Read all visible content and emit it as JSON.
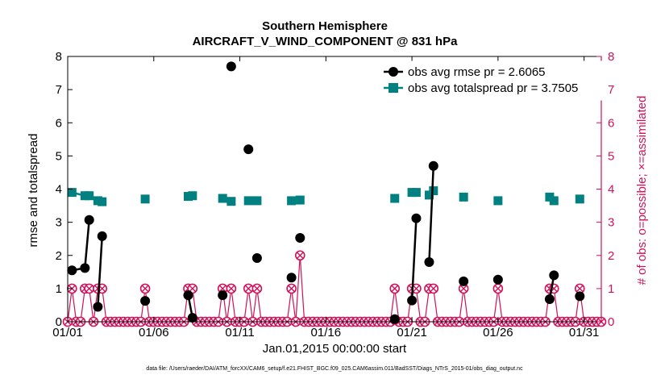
{
  "chart_data": {
    "type": "line",
    "title": "Southern Hemisphere",
    "subtitle": "AIRCRAFT_V_WIND_COMPONENT @ 831 hPa",
    "xlabel": "Jan.01,2015 00:00:00 start",
    "ylabel": "rmse and totalspread",
    "ylabel_right": "# of obs: o=possible; ×=assimilated",
    "footnote": "data file: /Users/raeder/DAI/ATM_forcXX/CAM6_setup/f.e21.FHIST_BGC.f09_025.CAM6assim.011/BadSST/Diags_NTrS_2015-01/obs_diag_output.nc",
    "xlim": [
      1,
      32
    ],
    "ylim": [
      0,
      8
    ],
    "ylim_right": [
      0,
      8
    ],
    "x_ticks": [
      1,
      6,
      11,
      16,
      21,
      26,
      31
    ],
    "x_tick_labels": [
      "01/01",
      "01/06",
      "01/11",
      "01/16",
      "01/21",
      "01/26",
      "01/31"
    ],
    "y_ticks": [
      0,
      1,
      2,
      3,
      4,
      5,
      6,
      7,
      8
    ],
    "y_tick_labels": [
      "0",
      "1",
      "2",
      "3",
      "4",
      "5",
      "6",
      "7",
      "8"
    ],
    "y_right_ticks": [
      0,
      1,
      2,
      3,
      4,
      5,
      6,
      7,
      8
    ],
    "y_right_tick_labels": [
      "0",
      "1",
      "2",
      "3",
      "4",
      "5",
      "6",
      "7",
      "8"
    ],
    "legend_position": "top-right",
    "colors": {
      "rmse": "#000000",
      "spread": "#008080",
      "obs": "#d1105a"
    },
    "series": [
      {
        "name": "obs avg rmse",
        "legend": "obs avg rmse pr = 2.6065",
        "marker": "circle",
        "x": [
          1.25,
          2.0,
          2.25,
          2.75,
          3.0,
          5.5,
          8.0,
          8.25,
          10.0,
          10.5,
          11.5,
          12.0,
          14.0,
          14.5,
          20.0,
          21.0,
          21.25,
          22.0,
          22.25,
          24.0,
          26.0,
          29.0,
          29.25,
          30.75
        ],
        "y": [
          1.55,
          1.62,
          3.07,
          0.45,
          2.58,
          0.63,
          0.8,
          0.12,
          0.8,
          7.7,
          5.2,
          1.92,
          1.33,
          2.53,
          0.08,
          0.64,
          3.12,
          1.8,
          4.7,
          1.22,
          1.27,
          0.68,
          1.4,
          0.77
        ],
        "connected_pairs": [
          [
            0,
            1
          ],
          [
            1,
            2
          ],
          [
            3,
            4
          ],
          [
            6,
            7
          ],
          [
            15,
            16
          ],
          [
            17,
            18
          ],
          [
            21,
            22
          ]
        ]
      },
      {
        "name": "obs avg totalspread",
        "legend": "obs avg totalspread pr = 3.7505",
        "marker": "square",
        "x": [
          1.25,
          2.0,
          2.25,
          2.75,
          3.0,
          5.5,
          8.0,
          8.25,
          10.0,
          10.5,
          11.5,
          12.0,
          14.0,
          14.5,
          20.0,
          21.0,
          21.25,
          22.0,
          22.25,
          24.0,
          26.0,
          29.0,
          29.25,
          30.75
        ],
        "y": [
          3.9,
          3.8,
          3.8,
          3.65,
          3.62,
          3.7,
          3.78,
          3.8,
          3.72,
          3.63,
          3.65,
          3.65,
          3.65,
          3.67,
          3.72,
          3.9,
          3.9,
          3.82,
          3.95,
          3.76,
          3.65,
          3.76,
          3.65,
          3.7
        ],
        "connected_pairs": [
          [
            0,
            1
          ],
          [
            1,
            2
          ],
          [
            3,
            4
          ],
          [
            6,
            7
          ],
          [
            15,
            16
          ],
          [
            17,
            18
          ],
          [
            21,
            22
          ]
        ]
      },
      {
        "name": "# of obs possible / assimilated",
        "axis": "right",
        "marker": "circle-x",
        "x": [
          1.0,
          1.25,
          1.5,
          1.75,
          2.0,
          2.25,
          2.5,
          2.75,
          3.0,
          3.25,
          3.5,
          3.75,
          4.0,
          4.25,
          4.5,
          4.75,
          5.0,
          5.25,
          5.5,
          5.75,
          6.0,
          6.25,
          6.5,
          6.75,
          7.0,
          7.25,
          7.5,
          7.75,
          8.0,
          8.25,
          8.5,
          8.75,
          9.0,
          9.25,
          9.5,
          9.75,
          10.0,
          10.25,
          10.5,
          10.75,
          11.0,
          11.25,
          11.5,
          11.75,
          12.0,
          12.25,
          12.5,
          12.75,
          13.0,
          13.25,
          13.5,
          13.75,
          14.0,
          14.25,
          14.5,
          14.75,
          15.0,
          15.25,
          15.5,
          15.75,
          16.0,
          16.25,
          16.5,
          16.75,
          17.0,
          17.25,
          17.5,
          17.75,
          18.0,
          18.25,
          18.5,
          18.75,
          19.0,
          19.25,
          19.5,
          19.75,
          20.0,
          20.25,
          20.5,
          20.75,
          21.0,
          21.25,
          21.5,
          21.75,
          22.0,
          22.25,
          22.5,
          22.75,
          23.0,
          23.25,
          23.5,
          23.75,
          24.0,
          24.25,
          24.5,
          24.75,
          25.0,
          25.25,
          25.5,
          25.75,
          26.0,
          26.25,
          26.5,
          26.75,
          27.0,
          27.25,
          27.5,
          27.75,
          28.0,
          28.25,
          28.5,
          28.75,
          29.0,
          29.25,
          29.5,
          29.75,
          30.0,
          30.25,
          30.5,
          30.75,
          31.0,
          31.25,
          31.5,
          31.75,
          32.0
        ],
        "y": [
          0,
          1,
          0,
          0,
          1,
          1,
          0,
          1,
          1,
          0,
          0,
          0,
          0,
          0,
          0,
          0,
          0,
          0,
          1,
          0,
          0,
          0,
          0,
          0,
          0,
          0,
          0,
          0,
          1,
          1,
          0,
          0,
          0,
          0,
          0,
          0,
          1,
          0,
          1,
          0,
          0,
          0,
          1,
          0,
          1,
          0,
          0,
          0,
          0,
          0,
          0,
          0,
          1,
          0,
          2,
          0,
          0,
          0,
          0,
          0,
          0,
          0,
          0,
          0,
          0,
          0,
          0,
          0,
          0,
          0,
          0,
          0,
          0,
          0,
          0,
          0,
          1,
          0,
          0,
          0,
          1,
          1,
          0,
          0,
          1,
          1,
          0,
          0,
          0,
          0,
          0,
          0,
          1,
          0,
          0,
          0,
          0,
          0,
          0,
          0,
          1,
          0,
          0,
          0,
          0,
          0,
          0,
          0,
          0,
          0,
          0,
          0,
          1,
          1,
          0,
          0,
          0,
          0,
          0,
          1,
          0,
          0,
          0,
          0,
          0
        ]
      }
    ]
  }
}
